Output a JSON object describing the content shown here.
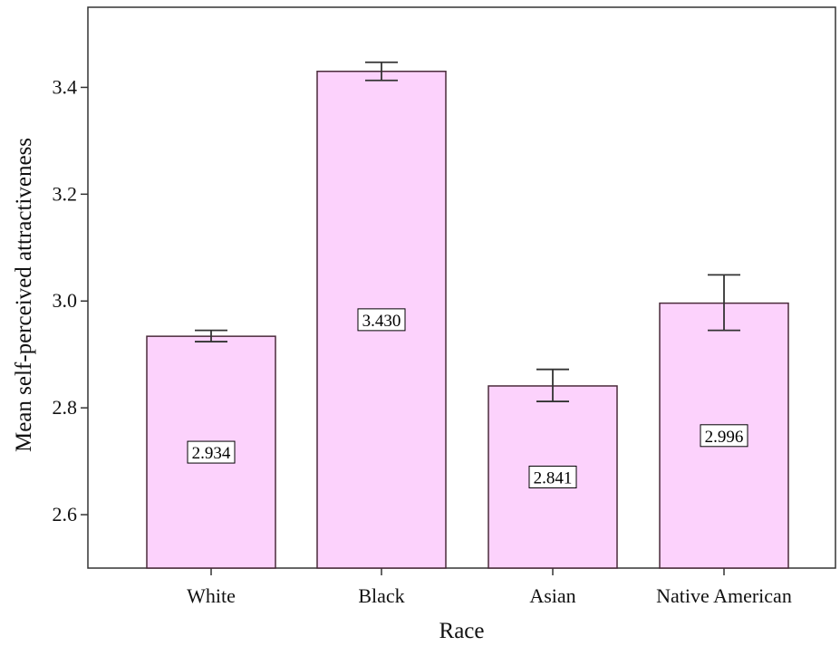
{
  "chart_data": {
    "type": "bar",
    "title": "",
    "xlabel": "Race",
    "ylabel": "Mean self-perceived attractiveness",
    "categories": [
      "White",
      "Black",
      "Asian",
      "Native American"
    ],
    "values": [
      2.934,
      3.43,
      2.841,
      2.996
    ],
    "value_labels": [
      "2.934",
      "3.430",
      "2.841",
      "2.996"
    ],
    "error_bars": {
      "lower": [
        2.924,
        3.413,
        2.812,
        2.945
      ],
      "upper": [
        2.945,
        3.447,
        2.872,
        3.049
      ]
    },
    "yticks": [
      2.6,
      2.8,
      3.0,
      3.2,
      3.4
    ],
    "ytick_labels": [
      "2.6",
      "2.8",
      "3.0",
      "3.2",
      "3.4"
    ],
    "ylim": [
      2.5,
      3.55
    ],
    "grid": false,
    "legend": null,
    "colors": {
      "bar_fill": "#fcd2fc",
      "bar_stroke": "#4a2a3a",
      "axis": "#333333",
      "error_bar": "#333333"
    }
  }
}
